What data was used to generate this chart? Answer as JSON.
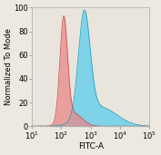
{
  "title": "",
  "xlabel": "FITC-A",
  "ylabel": "Normalized To Mode",
  "xlim_log": [
    10.0,
    100000.0
  ],
  "ylim": [
    0,
    100
  ],
  "yticks": [
    0,
    20,
    40,
    60,
    80,
    100
  ],
  "red_peak_log_mean": 2.08,
  "red_peak_log_std": 0.13,
  "blue_peak_log_mean": 2.78,
  "blue_peak_log_std": 0.2,
  "red_fill_color": "#e88888",
  "red_edge_color": "#cc4444",
  "blue_fill_color": "#55ccee",
  "blue_edge_color": "#1199bb",
  "red_alpha": 0.75,
  "blue_alpha": 0.72,
  "background_color": "#ede8e0",
  "plot_bg_color": "#eae5dc",
  "font_size": 6,
  "label_font_size": 6.5
}
